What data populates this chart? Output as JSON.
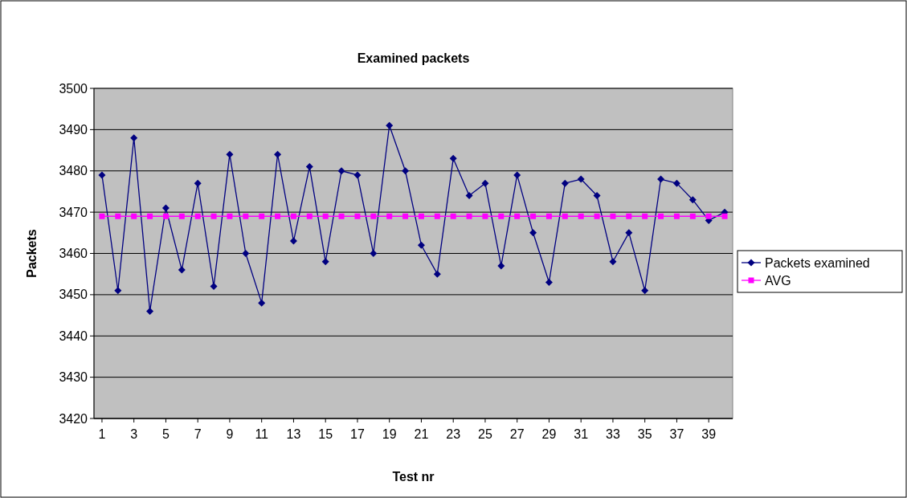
{
  "chart_data": {
    "type": "line",
    "title": "Examined packets",
    "xlabel": "Test nr",
    "ylabel": "Packets",
    "x": [
      1,
      2,
      3,
      4,
      5,
      6,
      7,
      8,
      9,
      10,
      11,
      12,
      13,
      14,
      15,
      16,
      17,
      18,
      19,
      20,
      21,
      22,
      23,
      24,
      25,
      26,
      27,
      28,
      29,
      30,
      31,
      32,
      33,
      34,
      35,
      36,
      37,
      38,
      39,
      40
    ],
    "xlim": [
      0.5,
      40.5
    ],
    "xticks": [
      1,
      3,
      5,
      7,
      9,
      11,
      13,
      15,
      17,
      19,
      21,
      23,
      25,
      27,
      29,
      31,
      33,
      35,
      37,
      39
    ],
    "series": [
      {
        "name": "Packets examined",
        "color": "#000080",
        "marker": "diamond",
        "values": [
          3479,
          3451,
          3488,
          3446,
          3471,
          3456,
          3477,
          3452,
          3484,
          3460,
          3448,
          3484,
          3463,
          3481,
          3458,
          3480,
          3479,
          3460,
          3491,
          3480,
          3462,
          3455,
          3483,
          3474,
          3477,
          3457,
          3479,
          3465,
          3453,
          3477,
          3478,
          3474,
          3458,
          3465,
          3451,
          3478,
          3477,
          3473,
          3468,
          3470
        ]
      },
      {
        "name": "AVG",
        "color": "#ff00ff",
        "marker": "square",
        "values": [
          3469,
          3469,
          3469,
          3469,
          3469,
          3469,
          3469,
          3469,
          3469,
          3469,
          3469,
          3469,
          3469,
          3469,
          3469,
          3469,
          3469,
          3469,
          3469,
          3469,
          3469,
          3469,
          3469,
          3469,
          3469,
          3469,
          3469,
          3469,
          3469,
          3469,
          3469,
          3469,
          3469,
          3469,
          3469,
          3469,
          3469,
          3469,
          3469,
          3469
        ]
      }
    ],
    "ylim": [
      3420,
      3500
    ],
    "yticks": [
      3420,
      3430,
      3440,
      3450,
      3460,
      3470,
      3480,
      3490,
      3500
    ],
    "grid": "y",
    "legend": "right"
  }
}
